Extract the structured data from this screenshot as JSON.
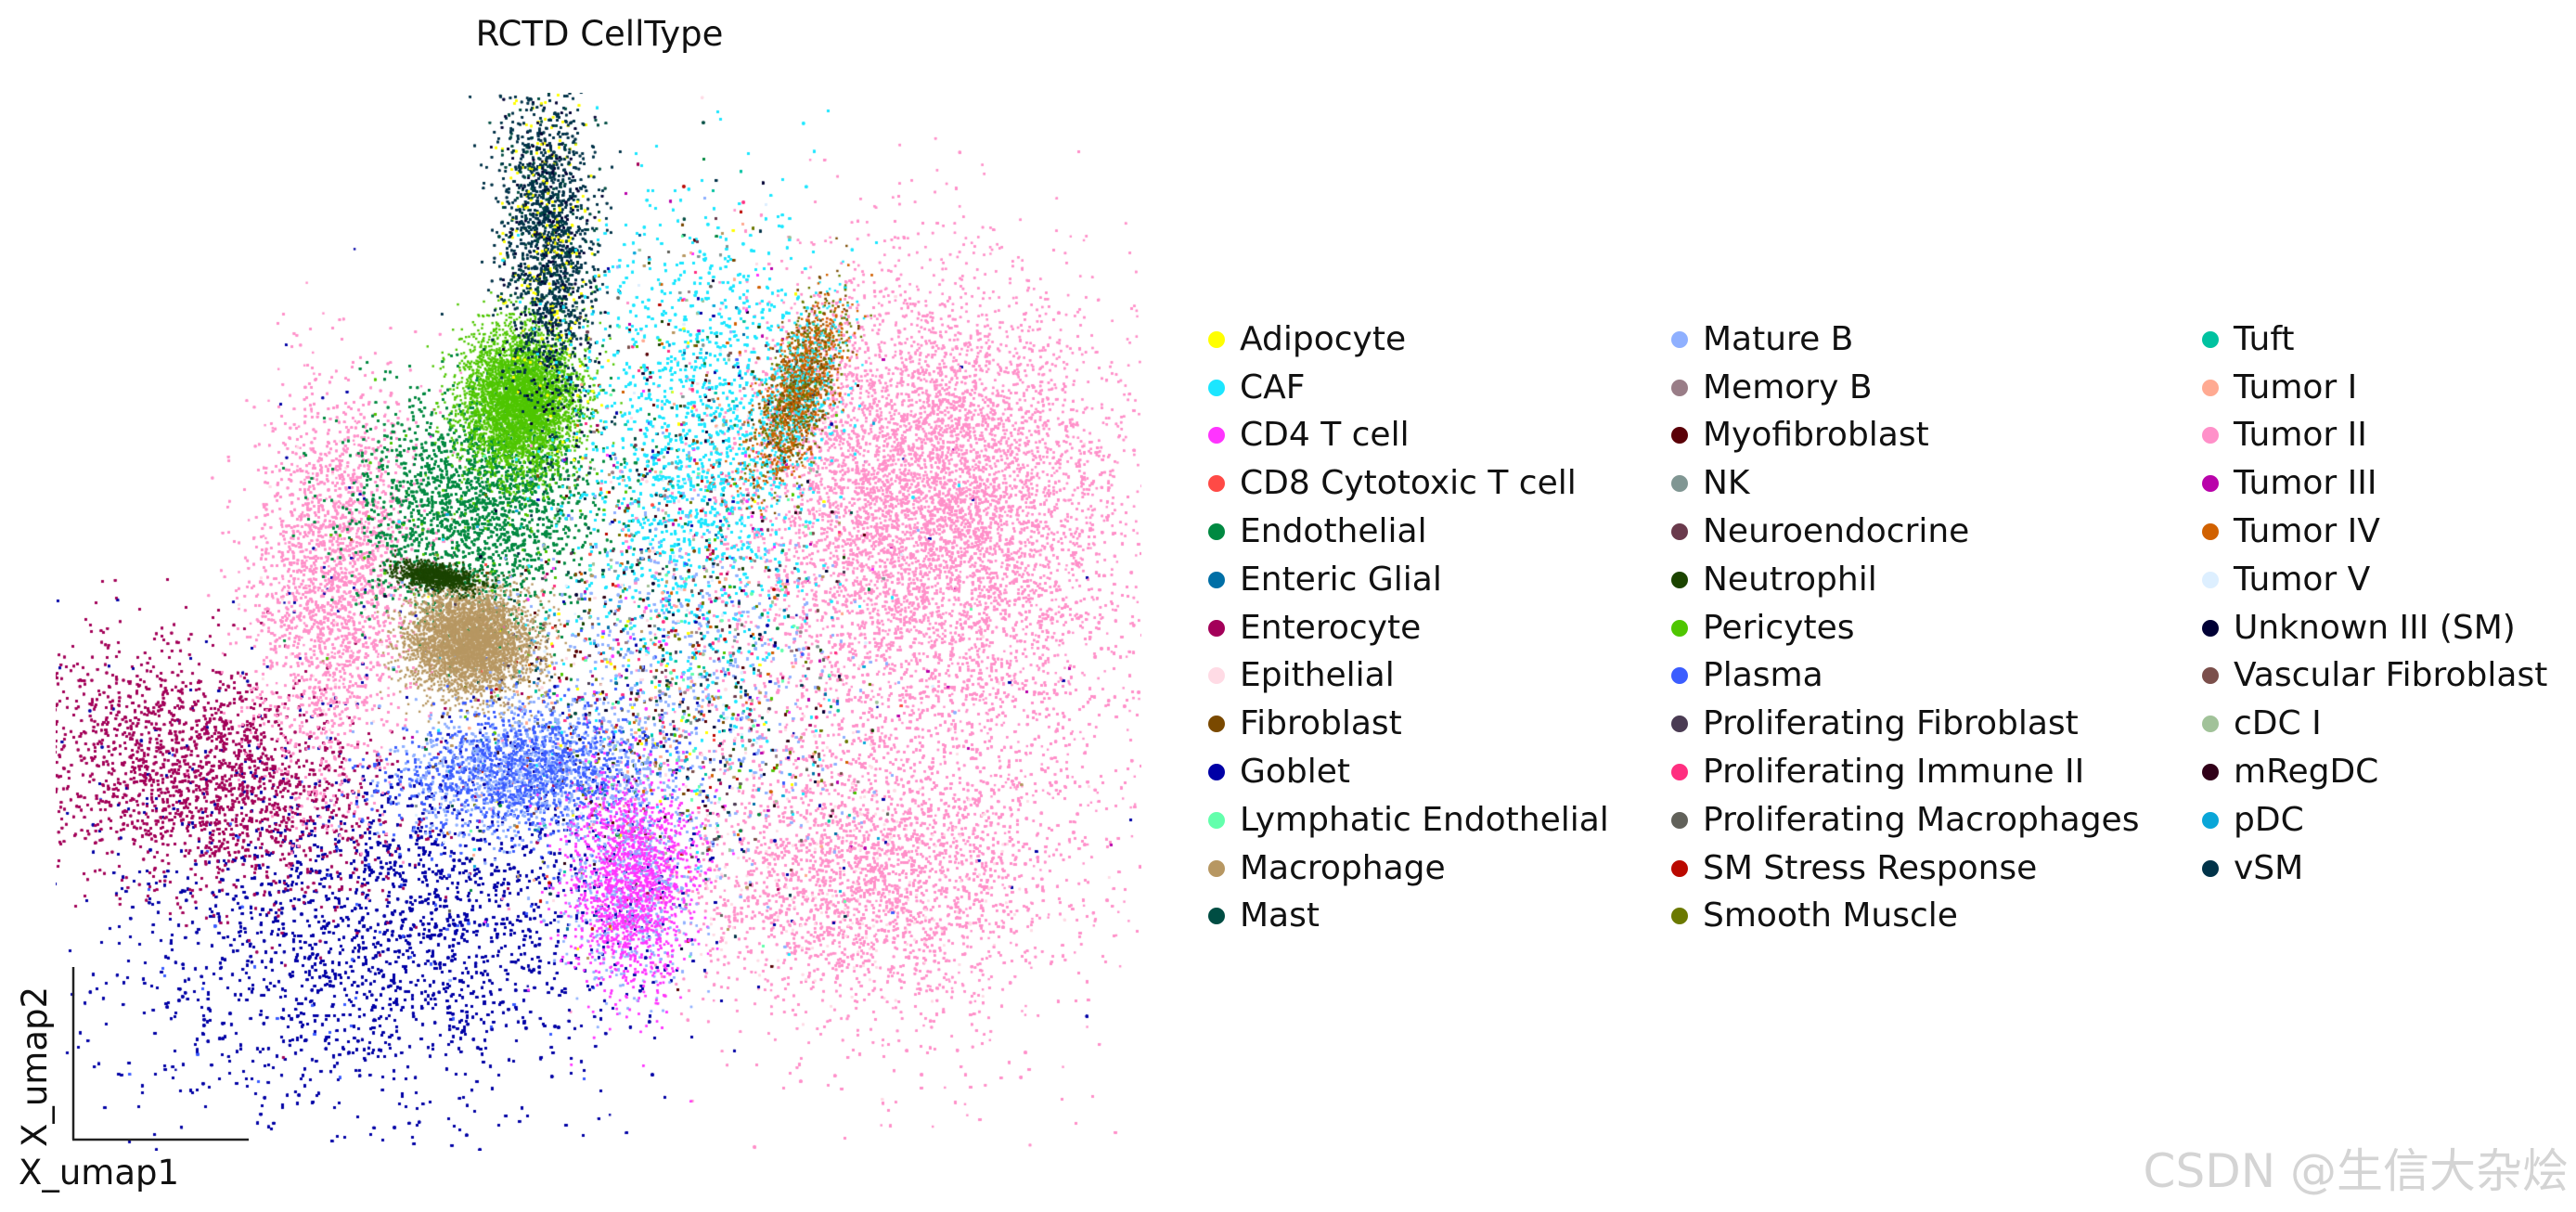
{
  "chart_data": {
    "type": "scatter",
    "title": "RCTD CellType",
    "xlabel": "X_umap1",
    "ylabel": "X_umap2",
    "legend": {
      "placement": "right",
      "columns": 3
    },
    "categories": [
      {
        "name": "Adipocyte",
        "color": "#ffff00"
      },
      {
        "name": "CAF",
        "color": "#1ce6ff"
      },
      {
        "name": "CD4 T cell",
        "color": "#ff34ff"
      },
      {
        "name": "CD8 Cytotoxic T cell",
        "color": "#ff4a46"
      },
      {
        "name": "Endothelial",
        "color": "#008941"
      },
      {
        "name": "Enteric Glial",
        "color": "#006fa6"
      },
      {
        "name": "Enterocyte",
        "color": "#a30059"
      },
      {
        "name": "Epithelial",
        "color": "#ffdbe5"
      },
      {
        "name": "Fibroblast",
        "color": "#7a4900"
      },
      {
        "name": "Goblet",
        "color": "#0000a6"
      },
      {
        "name": "Lymphatic Endothelial",
        "color": "#63ffac"
      },
      {
        "name": "Macrophage",
        "color": "#b79762"
      },
      {
        "name": "Mast",
        "color": "#004d43"
      },
      {
        "name": "Mature B",
        "color": "#8fb0ff"
      },
      {
        "name": "Memory B",
        "color": "#997d87"
      },
      {
        "name": "Myofibroblast",
        "color": "#5a0007"
      },
      {
        "name": "NK",
        "color": "#809693"
      },
      {
        "name": "Neuroendocrine",
        "color": "#6a3a4c"
      },
      {
        "name": "Neutrophil",
        "color": "#1b4400"
      },
      {
        "name": "Pericytes",
        "color": "#4fc601"
      },
      {
        "name": "Plasma",
        "color": "#3b5dff"
      },
      {
        "name": "Proliferating Fibroblast",
        "color": "#4a3b53"
      },
      {
        "name": "Proliferating Immune II",
        "color": "#ff2f80"
      },
      {
        "name": "Proliferating Macrophages",
        "color": "#61615a"
      },
      {
        "name": "SM Stress Response",
        "color": "#ba0900"
      },
      {
        "name": "Smooth Muscle",
        "color": "#6b7900"
      },
      {
        "name": "Tuft",
        "color": "#00c2a0"
      },
      {
        "name": "Tumor I",
        "color": "#ffaa92"
      },
      {
        "name": "Tumor II",
        "color": "#ff90c9"
      },
      {
        "name": "Tumor III",
        "color": "#b903aa"
      },
      {
        "name": "Tumor IV",
        "color": "#d16100"
      },
      {
        "name": "Tumor V",
        "color": "#ddefff"
      },
      {
        "name": "Unknown III (SM)",
        "color": "#000035"
      },
      {
        "name": "Vascular Fibroblast",
        "color": "#7b4f4b"
      },
      {
        "name": "cDC I",
        "color": "#a1c299"
      },
      {
        "name": "mRegDC",
        "color": "#300018"
      },
      {
        "name": "pDC",
        "color": "#0aa6d8"
      },
      {
        "name": "vSM",
        "color": "#013349"
      }
    ]
  },
  "watermark": "CSDN @生信大杂烩"
}
